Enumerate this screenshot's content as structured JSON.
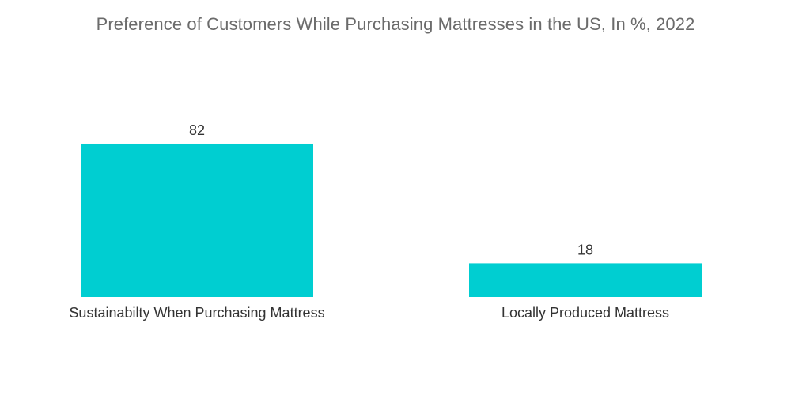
{
  "chart_data": {
    "type": "bar",
    "title": "Preference of Customers While Purchasing Mattresses in the US, In %, 2022",
    "categories": [
      "Sustainabilty When Purchasing Mattress",
      "Locally Produced Mattress"
    ],
    "values": [
      82,
      18
    ],
    "value_labels": [
      "82",
      "18"
    ],
    "xlabel": "",
    "ylabel": "",
    "ylim": [
      0,
      100
    ],
    "grid": false,
    "legend": "none",
    "bar_color": "#00CED1"
  }
}
